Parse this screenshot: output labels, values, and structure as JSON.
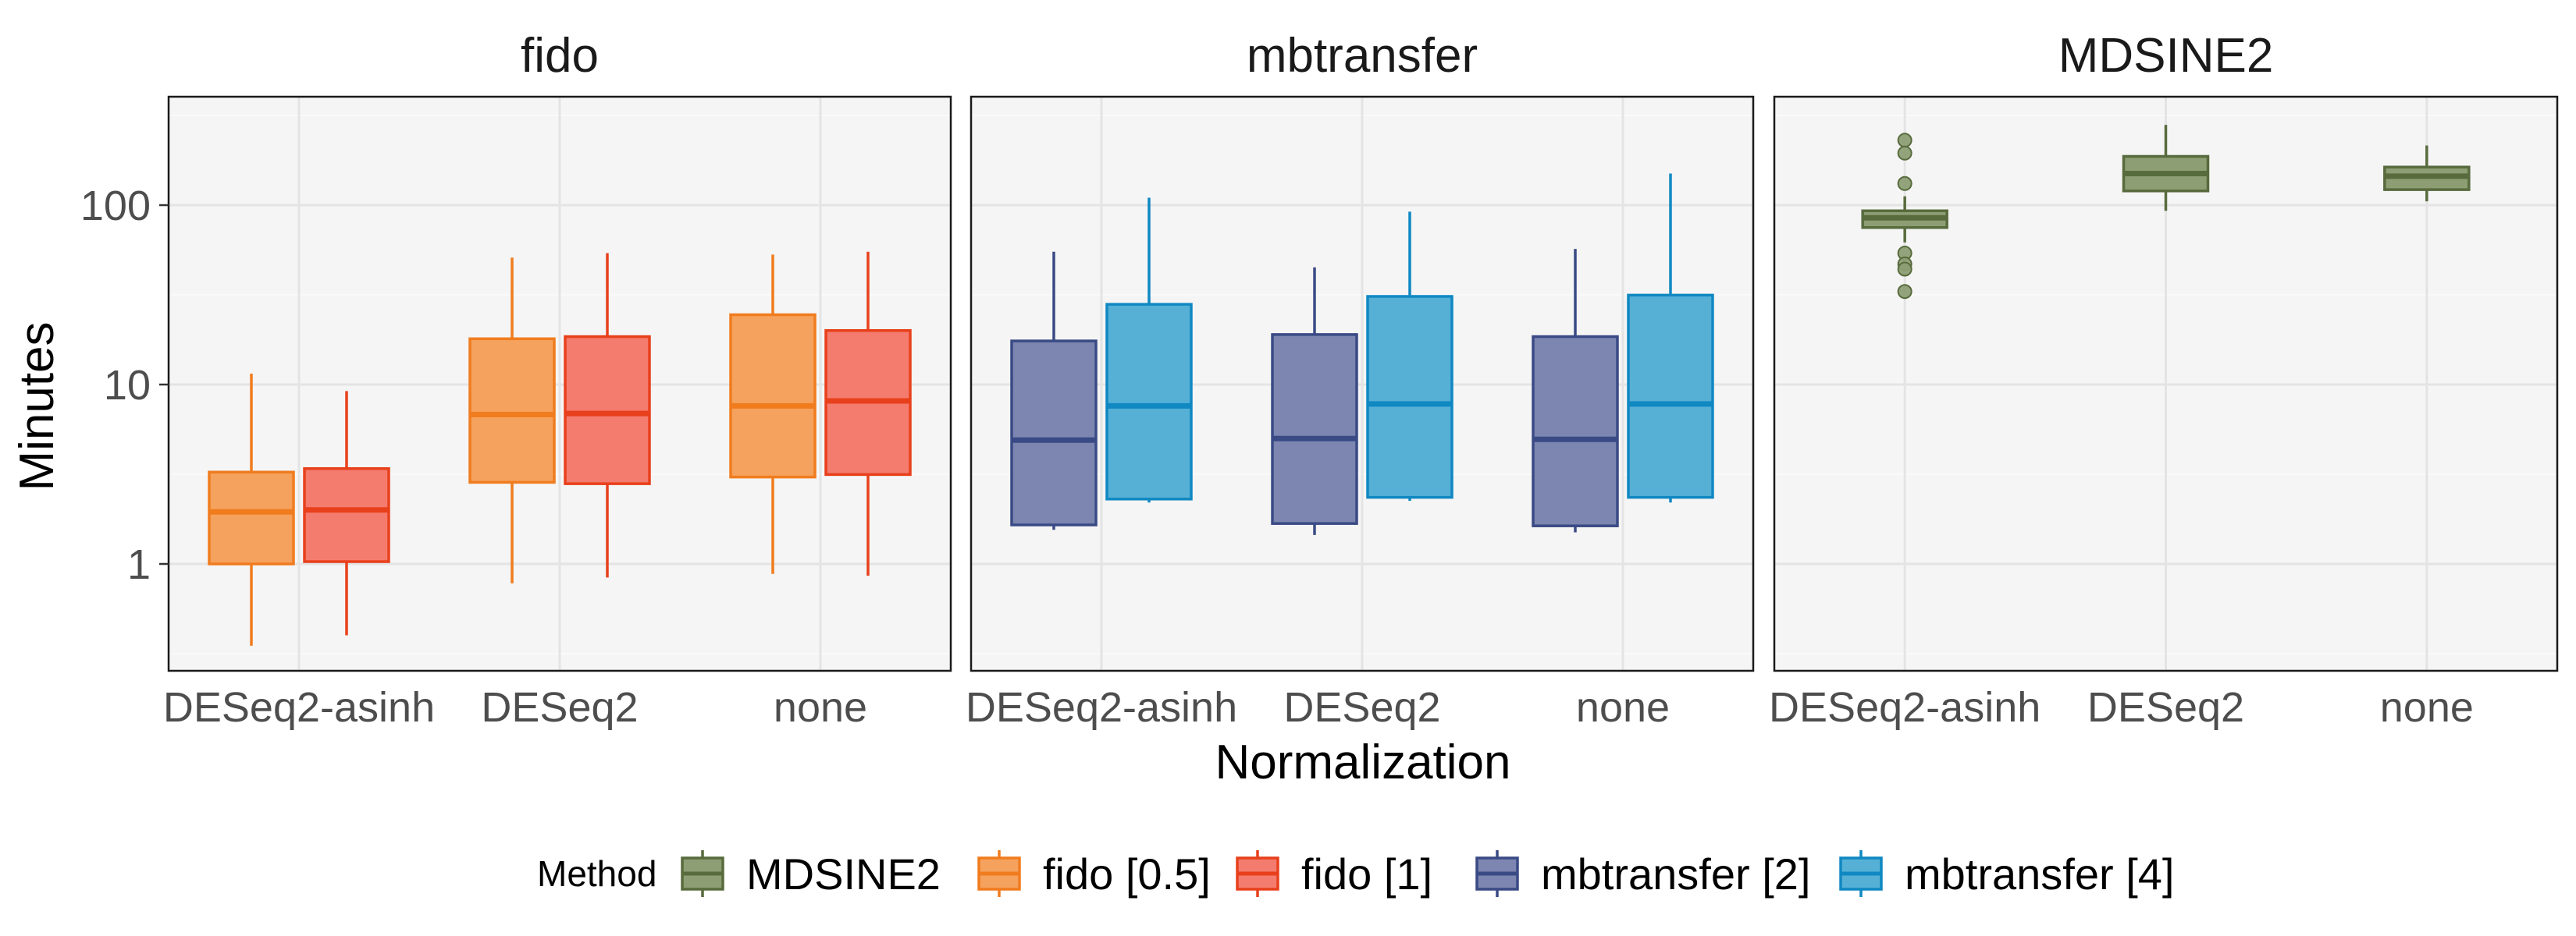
{
  "chart_data": {
    "type": "box",
    "ylabel": "Minutes",
    "xlabel": "Normalization",
    "y_scale": "log10",
    "ylim": [
      0.25,
      420
    ],
    "y_ticks": [
      {
        "value": 1,
        "label": "1"
      },
      {
        "value": 10,
        "label": "10"
      },
      {
        "value": 100,
        "label": "100"
      }
    ],
    "categories": [
      "DESeq2-asinh",
      "DESeq2",
      "none"
    ],
    "legend": {
      "title": "Method",
      "position": "bottom",
      "entries": [
        {
          "name": "MDSINE2",
          "fill": "#8D9E74",
          "stroke": "#586B3D"
        },
        {
          "name": "fido [0.5]",
          "fill": "#F5A25E",
          "stroke": "#F07C1E"
        },
        {
          "name": "fido [1]",
          "fill": "#F47C6E",
          "stroke": "#E8401C"
        },
        {
          "name": "mbtransfer [2]",
          "fill": "#7D86B0",
          "stroke": "#3A4A85"
        },
        {
          "name": "mbtransfer [4]",
          "fill": "#56B0D6",
          "stroke": "#1088C2"
        }
      ]
    },
    "facets": [
      {
        "title": "fido",
        "series": [
          {
            "method": "fido [0.5]",
            "boxes": [
              {
                "category": "DESeq2-asinh",
                "min": 0.35,
                "q1": 1.0,
                "median": 1.95,
                "q3": 3.25,
                "max": 11.5,
                "outliers": []
              },
              {
                "category": "DESeq2",
                "min": 0.78,
                "q1": 2.85,
                "median": 6.8,
                "q3": 18.0,
                "max": 51,
                "outliers": []
              },
              {
                "category": "none",
                "min": 0.88,
                "q1": 3.05,
                "median": 7.6,
                "q3": 24.5,
                "max": 53,
                "outliers": []
              }
            ]
          },
          {
            "method": "fido [1]",
            "boxes": [
              {
                "category": "DESeq2-asinh",
                "min": 0.4,
                "q1": 1.03,
                "median": 2.0,
                "q3": 3.4,
                "max": 9.2,
                "outliers": []
              },
              {
                "category": "DESeq2",
                "min": 0.84,
                "q1": 2.8,
                "median": 6.9,
                "q3": 18.5,
                "max": 54,
                "outliers": []
              },
              {
                "category": "none",
                "min": 0.86,
                "q1": 3.15,
                "median": 8.1,
                "q3": 20.0,
                "max": 55,
                "outliers": []
              }
            ]
          }
        ]
      },
      {
        "title": "mbtransfer",
        "series": [
          {
            "method": "mbtransfer [2]",
            "boxes": [
              {
                "category": "DESeq2-asinh",
                "min": 1.55,
                "q1": 1.65,
                "median": 4.9,
                "q3": 17.5,
                "max": 55,
                "outliers": []
              },
              {
                "category": "DESeq2",
                "min": 1.45,
                "q1": 1.68,
                "median": 5.0,
                "q3": 19.0,
                "max": 45,
                "outliers": []
              },
              {
                "category": "none",
                "min": 1.5,
                "q1": 1.63,
                "median": 4.95,
                "q3": 18.5,
                "max": 57,
                "outliers": []
              }
            ]
          },
          {
            "method": "mbtransfer [4]",
            "boxes": [
              {
                "category": "DESeq2-asinh",
                "min": 2.2,
                "q1": 2.3,
                "median": 7.6,
                "q3": 28.0,
                "max": 110,
                "outliers": []
              },
              {
                "category": "DESeq2",
                "min": 2.25,
                "q1": 2.35,
                "median": 7.8,
                "q3": 31.0,
                "max": 92,
                "outliers": []
              },
              {
                "category": "none",
                "min": 2.2,
                "q1": 2.35,
                "median": 7.8,
                "q3": 31.5,
                "max": 150,
                "outliers": []
              }
            ]
          }
        ]
      },
      {
        "title": "MDSINE2",
        "series": [
          {
            "method": "MDSINE2",
            "boxes": [
              {
                "category": "DESeq2-asinh",
                "min": 62,
                "q1": 75,
                "median": 85,
                "q3": 93,
                "max": 112,
                "outliers": [
                  230,
                  195,
                  132,
                  54,
                  47,
                  44,
                  33
                ]
              },
              {
                "category": "DESeq2",
                "min": 93,
                "q1": 120,
                "median": 150,
                "q3": 187,
                "max": 280,
                "outliers": []
              },
              {
                "category": "none",
                "min": 105,
                "q1": 122,
                "median": 145,
                "q3": 163,
                "max": 215,
                "outliers": []
              }
            ]
          }
        ]
      }
    ]
  }
}
